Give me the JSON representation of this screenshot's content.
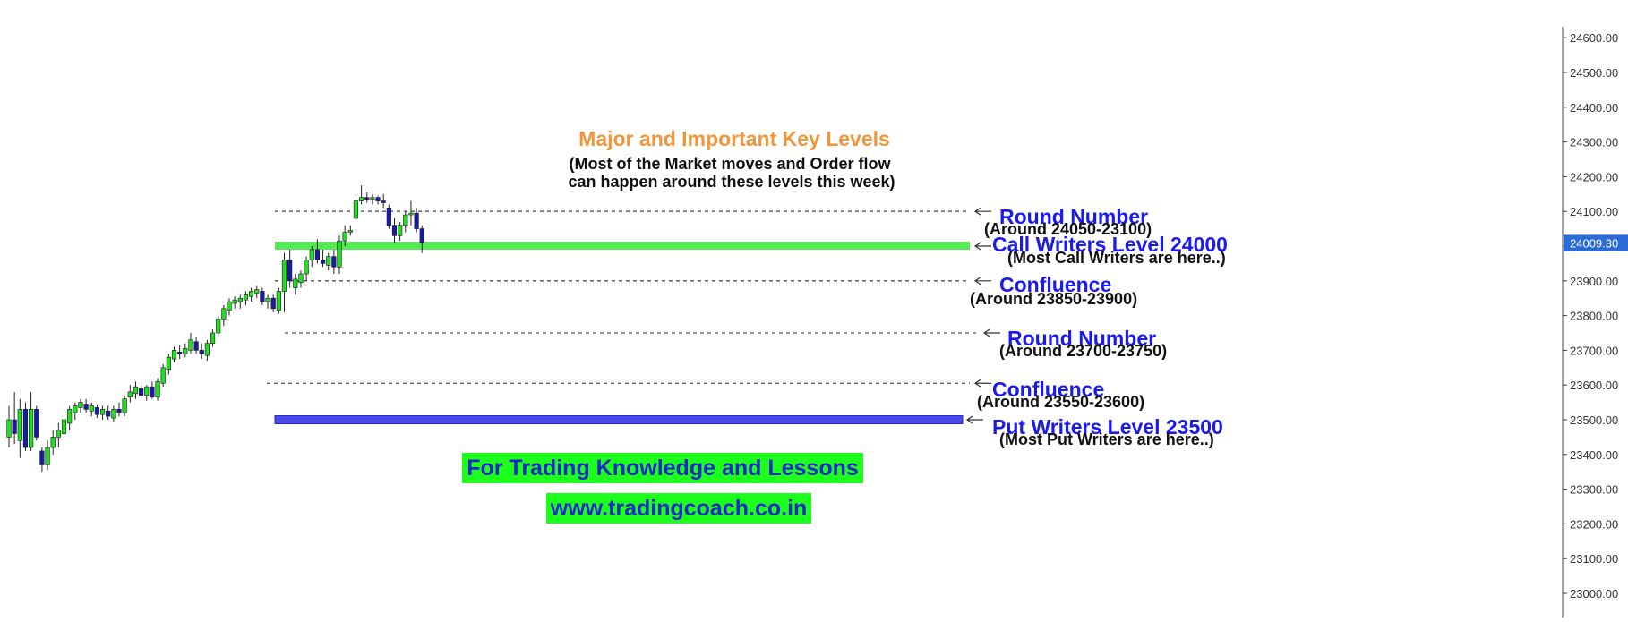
{
  "colors": {
    "background": "#ffffff",
    "bull_candle": "#22dd22",
    "bear_candle": "#1a1aa8",
    "wick": "#222222",
    "axis_text": "#333333",
    "title": "#f0963a",
    "level_label": "#1a1aee",
    "sub_label": "#111111",
    "call_zone": "#57ea57",
    "put_zone": "#4a4af0",
    "price_tag_bg": "#2a6bd8",
    "promo_bg": "#1cff1c",
    "promo_text": "#1d28c8"
  },
  "chart_data": {
    "type": "candlestick",
    "y_axis": {
      "ylim": [
        22950,
        24650
      ],
      "ticks": [
        "24600.00",
        "24500.00",
        "24400.00",
        "24300.00",
        "24200.00",
        "24100.00",
        "24000.00",
        "23900.00",
        "23800.00",
        "23700.00",
        "23600.00",
        "23500.00",
        "23400.00",
        "23300.00",
        "23200.00",
        "23100.00",
        "23000.00"
      ],
      "tick_values": [
        24600,
        24500,
        24400,
        24300,
        24200,
        24100,
        24000,
        23900,
        23800,
        23700,
        23600,
        23500,
        23400,
        23300,
        23200,
        23100,
        23000
      ],
      "current_price": 24009.3,
      "current_price_label": "24009.30",
      "position": "right"
    },
    "grid": false,
    "candles": [
      {
        "o": 23450,
        "h": 23540,
        "l": 23420,
        "c": 23500
      },
      {
        "o": 23500,
        "h": 23580,
        "l": 23430,
        "c": 23460
      },
      {
        "o": 23440,
        "h": 23560,
        "l": 23390,
        "c": 23530
      },
      {
        "o": 23530,
        "h": 23550,
        "l": 23410,
        "c": 23420
      },
      {
        "o": 23420,
        "h": 23580,
        "l": 23410,
        "c": 23530
      },
      {
        "o": 23530,
        "h": 23540,
        "l": 23440,
        "c": 23450
      },
      {
        "o": 23410,
        "h": 23420,
        "l": 23350,
        "c": 23370
      },
      {
        "o": 23370,
        "h": 23440,
        "l": 23355,
        "c": 23420
      },
      {
        "o": 23420,
        "h": 23470,
        "l": 23400,
        "c": 23450
      },
      {
        "o": 23450,
        "h": 23490,
        "l": 23420,
        "c": 23470
      },
      {
        "o": 23460,
        "h": 23510,
        "l": 23440,
        "c": 23500
      },
      {
        "o": 23490,
        "h": 23540,
        "l": 23470,
        "c": 23530
      },
      {
        "o": 23520,
        "h": 23550,
        "l": 23500,
        "c": 23540
      },
      {
        "o": 23535,
        "h": 23560,
        "l": 23520,
        "c": 23550
      },
      {
        "o": 23545,
        "h": 23560,
        "l": 23520,
        "c": 23530
      },
      {
        "o": 23525,
        "h": 23550,
        "l": 23510,
        "c": 23540
      },
      {
        "o": 23535,
        "h": 23545,
        "l": 23505,
        "c": 23515
      },
      {
        "o": 23515,
        "h": 23540,
        "l": 23500,
        "c": 23530
      },
      {
        "o": 23525,
        "h": 23540,
        "l": 23500,
        "c": 23510
      },
      {
        "o": 23505,
        "h": 23540,
        "l": 23495,
        "c": 23530
      },
      {
        "o": 23530,
        "h": 23550,
        "l": 23510,
        "c": 23520
      },
      {
        "o": 23520,
        "h": 23570,
        "l": 23510,
        "c": 23560
      },
      {
        "o": 23565,
        "h": 23600,
        "l": 23550,
        "c": 23580
      },
      {
        "o": 23575,
        "h": 23610,
        "l": 23560,
        "c": 23595
      },
      {
        "o": 23590,
        "h": 23610,
        "l": 23560,
        "c": 23570
      },
      {
        "o": 23570,
        "h": 23600,
        "l": 23555,
        "c": 23595
      },
      {
        "o": 23595,
        "h": 23610,
        "l": 23560,
        "c": 23565
      },
      {
        "o": 23565,
        "h": 23620,
        "l": 23555,
        "c": 23610
      },
      {
        "o": 23605,
        "h": 23660,
        "l": 23595,
        "c": 23650
      },
      {
        "o": 23645,
        "h": 23690,
        "l": 23630,
        "c": 23680
      },
      {
        "o": 23675,
        "h": 23710,
        "l": 23665,
        "c": 23700
      },
      {
        "o": 23695,
        "h": 23715,
        "l": 23675,
        "c": 23690
      },
      {
        "o": 23690,
        "h": 23720,
        "l": 23680,
        "c": 23705
      },
      {
        "o": 23700,
        "h": 23750,
        "l": 23690,
        "c": 23730
      },
      {
        "o": 23725,
        "h": 23740,
        "l": 23690,
        "c": 23700
      },
      {
        "o": 23700,
        "h": 23720,
        "l": 23675,
        "c": 23690
      },
      {
        "o": 23685,
        "h": 23730,
        "l": 23670,
        "c": 23720
      },
      {
        "o": 23720,
        "h": 23760,
        "l": 23710,
        "c": 23750
      },
      {
        "o": 23750,
        "h": 23800,
        "l": 23740,
        "c": 23790
      },
      {
        "o": 23790,
        "h": 23830,
        "l": 23770,
        "c": 23820
      },
      {
        "o": 23815,
        "h": 23850,
        "l": 23800,
        "c": 23840
      },
      {
        "o": 23835,
        "h": 23855,
        "l": 23820,
        "c": 23845
      },
      {
        "o": 23840,
        "h": 23860,
        "l": 23820,
        "c": 23850
      },
      {
        "o": 23845,
        "h": 23870,
        "l": 23830,
        "c": 23860
      },
      {
        "o": 23855,
        "h": 23880,
        "l": 23840,
        "c": 23870
      },
      {
        "o": 23865,
        "h": 23885,
        "l": 23850,
        "c": 23875
      },
      {
        "o": 23870,
        "h": 23880,
        "l": 23830,
        "c": 23840
      },
      {
        "o": 23840,
        "h": 23860,
        "l": 23820,
        "c": 23850
      },
      {
        "o": 23850,
        "h": 23860,
        "l": 23810,
        "c": 23820
      },
      {
        "o": 23815,
        "h": 23880,
        "l": 23805,
        "c": 23870
      },
      {
        "o": 23870,
        "h": 23980,
        "l": 23810,
        "c": 23960
      },
      {
        "o": 23960,
        "h": 23990,
        "l": 23880,
        "c": 23900
      },
      {
        "o": 23880,
        "h": 23920,
        "l": 23860,
        "c": 23905
      },
      {
        "o": 23895,
        "h": 23930,
        "l": 23880,
        "c": 23920
      },
      {
        "o": 23920,
        "h": 23970,
        "l": 23900,
        "c": 23960
      },
      {
        "o": 23960,
        "h": 24000,
        "l": 23940,
        "c": 23990
      },
      {
        "o": 23990,
        "h": 24020,
        "l": 23950,
        "c": 23960
      },
      {
        "o": 23960,
        "h": 23990,
        "l": 23940,
        "c": 23950
      },
      {
        "o": 23945,
        "h": 23980,
        "l": 23930,
        "c": 23970
      },
      {
        "o": 23970,
        "h": 23990,
        "l": 23920,
        "c": 23940
      },
      {
        "o": 23940,
        "h": 24030,
        "l": 23920,
        "c": 24015
      },
      {
        "o": 24015,
        "h": 24060,
        "l": 24000,
        "c": 24040
      },
      {
        "o": 24040,
        "h": 24060,
        "l": 24030,
        "c": 24045
      },
      {
        "o": 24080,
        "h": 24150,
        "l": 24070,
        "c": 24130
      },
      {
        "o": 24130,
        "h": 24175,
        "l": 24120,
        "c": 24140
      },
      {
        "o": 24140,
        "h": 24155,
        "l": 24125,
        "c": 24135
      },
      {
        "o": 24135,
        "h": 24150,
        "l": 24120,
        "c": 24140
      },
      {
        "o": 24140,
        "h": 24145,
        "l": 24120,
        "c": 24130
      },
      {
        "o": 24130,
        "h": 24150,
        "l": 24110,
        "c": 24125
      },
      {
        "o": 24110,
        "h": 24120,
        "l": 24050,
        "c": 24060
      },
      {
        "o": 24060,
        "h": 24080,
        "l": 24010,
        "c": 24030
      },
      {
        "o": 24030,
        "h": 24070,
        "l": 24015,
        "c": 24060
      },
      {
        "o": 24060,
        "h": 24100,
        "l": 24040,
        "c": 24090
      },
      {
        "o": 24090,
        "h": 24130,
        "l": 24060,
        "c": 24095
      },
      {
        "o": 24095,
        "h": 24110,
        "l": 24040,
        "c": 24050
      },
      {
        "o": 24050,
        "h": 24060,
        "l": 23980,
        "c": 24010
      }
    ],
    "annotations": {
      "title": "Major and Important Key Levels",
      "subtitle_line1": "(Most of the Market moves and Order flow",
      "subtitle_line2": "can happen around these levels this week)",
      "levels": [
        {
          "kind": "dashed",
          "value": 24100,
          "label": "Round Number",
          "sub": "(Around 24050-23100)"
        },
        {
          "kind": "call-zone",
          "value": 24000,
          "label": "Call Writers Level 24000",
          "sub": "(Most Call Writers are here..)"
        },
        {
          "kind": "dashed",
          "value": 23900,
          "label": "Confluence",
          "sub": "(Around 23850-23900)"
        },
        {
          "kind": "dashed",
          "value": 23750,
          "label": "Round Number",
          "sub": "(Around 23700-23750)"
        },
        {
          "kind": "dashed",
          "value": 23605,
          "label": "Confluence",
          "sub": "(Around 23550-23600)"
        },
        {
          "kind": "put-zone",
          "value": 23500,
          "label": "Put Writers Level 23500",
          "sub": "(Most Put Writers are here..)"
        }
      ]
    }
  },
  "promo": {
    "line1": "For Trading Knowledge and Lessons",
    "line2": "www.tradingcoach.co.in"
  }
}
